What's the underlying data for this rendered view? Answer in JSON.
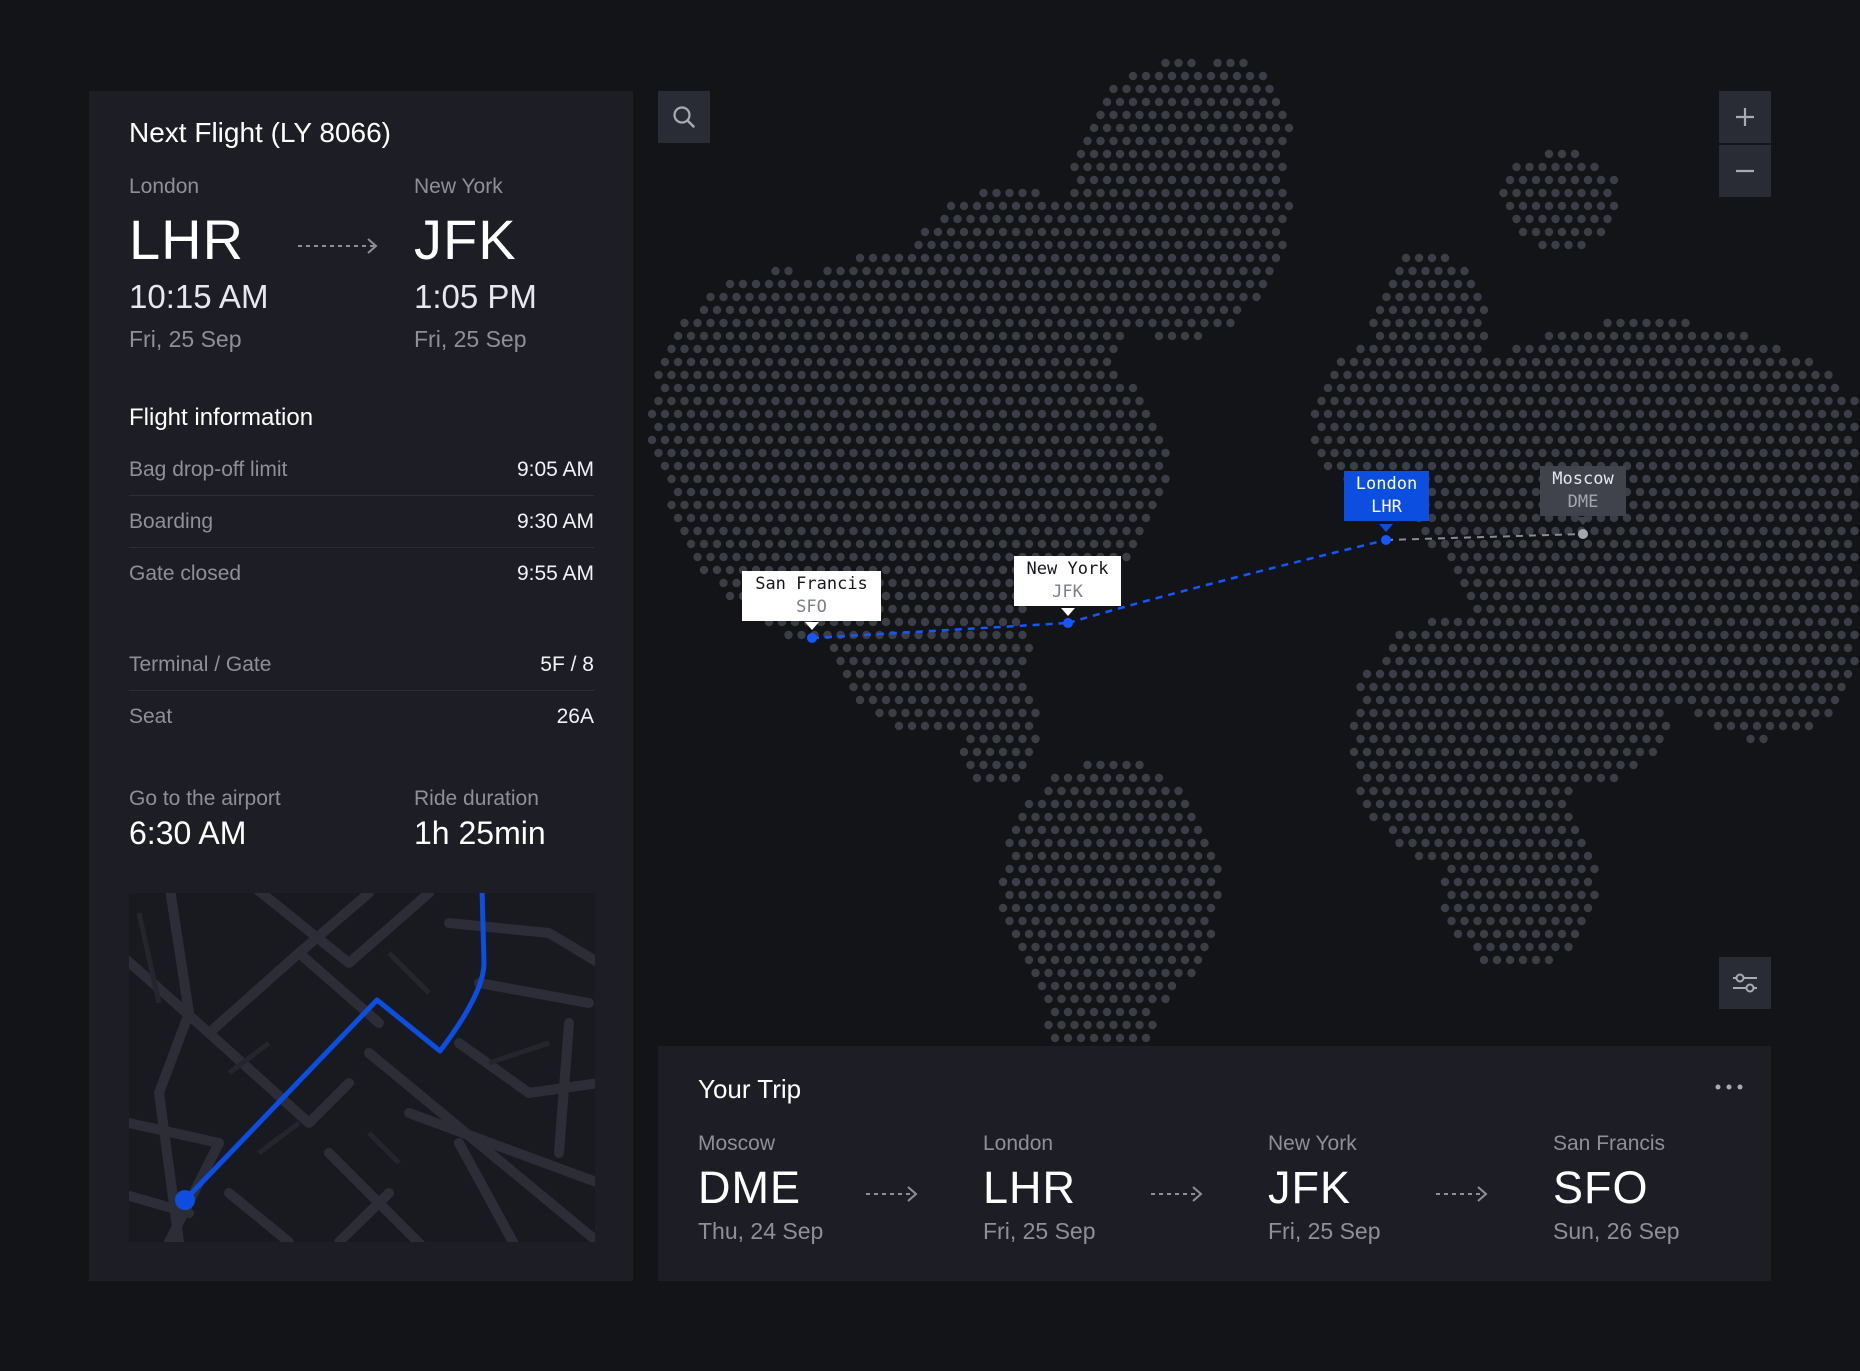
{
  "next_flight": {
    "title": "Next Flight (LY 8066)",
    "from": {
      "city": "London",
      "code": "LHR",
      "time": "10:15 AM",
      "date": "Fri, 25 Sep"
    },
    "to": {
      "city": "New York",
      "code": "JFK",
      "time": "1:05 PM",
      "date": "Fri, 25 Sep"
    }
  },
  "flight_info": {
    "heading": "Flight information",
    "rows": [
      {
        "label": "Bag drop-off limit",
        "value": "9:05 AM"
      },
      {
        "label": "Boarding",
        "value": "9:30 AM"
      },
      {
        "label": "Gate closed",
        "value": "9:55 AM"
      }
    ],
    "rows2": [
      {
        "label": "Terminal / Gate",
        "value": "5F / 8"
      },
      {
        "label": "Seat",
        "value": "26A"
      }
    ]
  },
  "airport": {
    "go_label": "Go to the airport",
    "go_time": "6:30 AM",
    "ride_label": "Ride duration",
    "ride_time": "1h 25min"
  },
  "map": {
    "markers": [
      {
        "city": "San Francis",
        "code": "SFO",
        "style": "white"
      },
      {
        "city": "New York",
        "code": "JFK",
        "style": "white"
      },
      {
        "city": "London",
        "code": "LHR",
        "style": "blue"
      },
      {
        "city": "Moscow",
        "code": "DME",
        "style": "gray"
      }
    ],
    "colors": {
      "route": "#1557ff",
      "dots": "#3c3e47",
      "accent": "#0c4ee0"
    }
  },
  "trip": {
    "title": "Your Trip",
    "stops": [
      {
        "city": "Moscow",
        "code": "DME",
        "date": "Thu, 24 Sep"
      },
      {
        "city": "London",
        "code": "LHR",
        "date": "Fri, 25 Sep"
      },
      {
        "city": "New York",
        "code": "JFK",
        "date": "Fri, 25 Sep"
      },
      {
        "city": "San Francis",
        "code": "SFO",
        "date": "Sun, 26 Sep"
      }
    ]
  },
  "icons": {
    "search": "search-icon",
    "zoom_in": "plus-icon",
    "zoom_out": "minus-icon",
    "filter": "sliders-icon",
    "more": "more-horizontal-icon"
  }
}
